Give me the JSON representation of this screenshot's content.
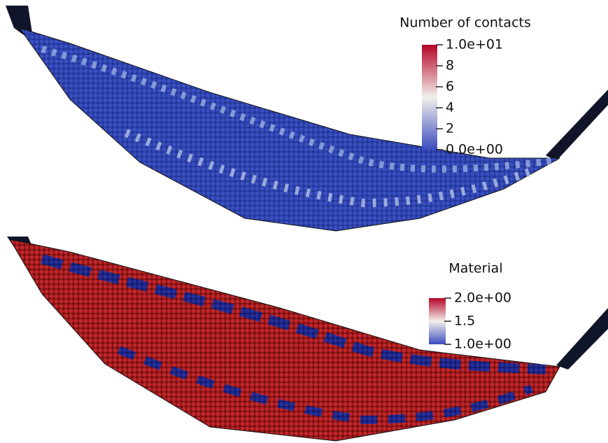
{
  "panels": [
    {
      "legend": {
        "title": "Number of contacts",
        "range": [
          0,
          10
        ],
        "ticks": [
          {
            "value": 10,
            "label": "1.0e+01"
          },
          8,
          6,
          4,
          2,
          {
            "value": 0,
            "label": "0.0e+00"
          }
        ]
      }
    },
    {
      "legend": {
        "title": "Material",
        "range": [
          1,
          2
        ],
        "ticks": [
          {
            "value": 2,
            "label": "2.0e+00"
          },
          1.5,
          {
            "value": 1,
            "label": "1.0e+00"
          }
        ]
      }
    }
  ]
}
